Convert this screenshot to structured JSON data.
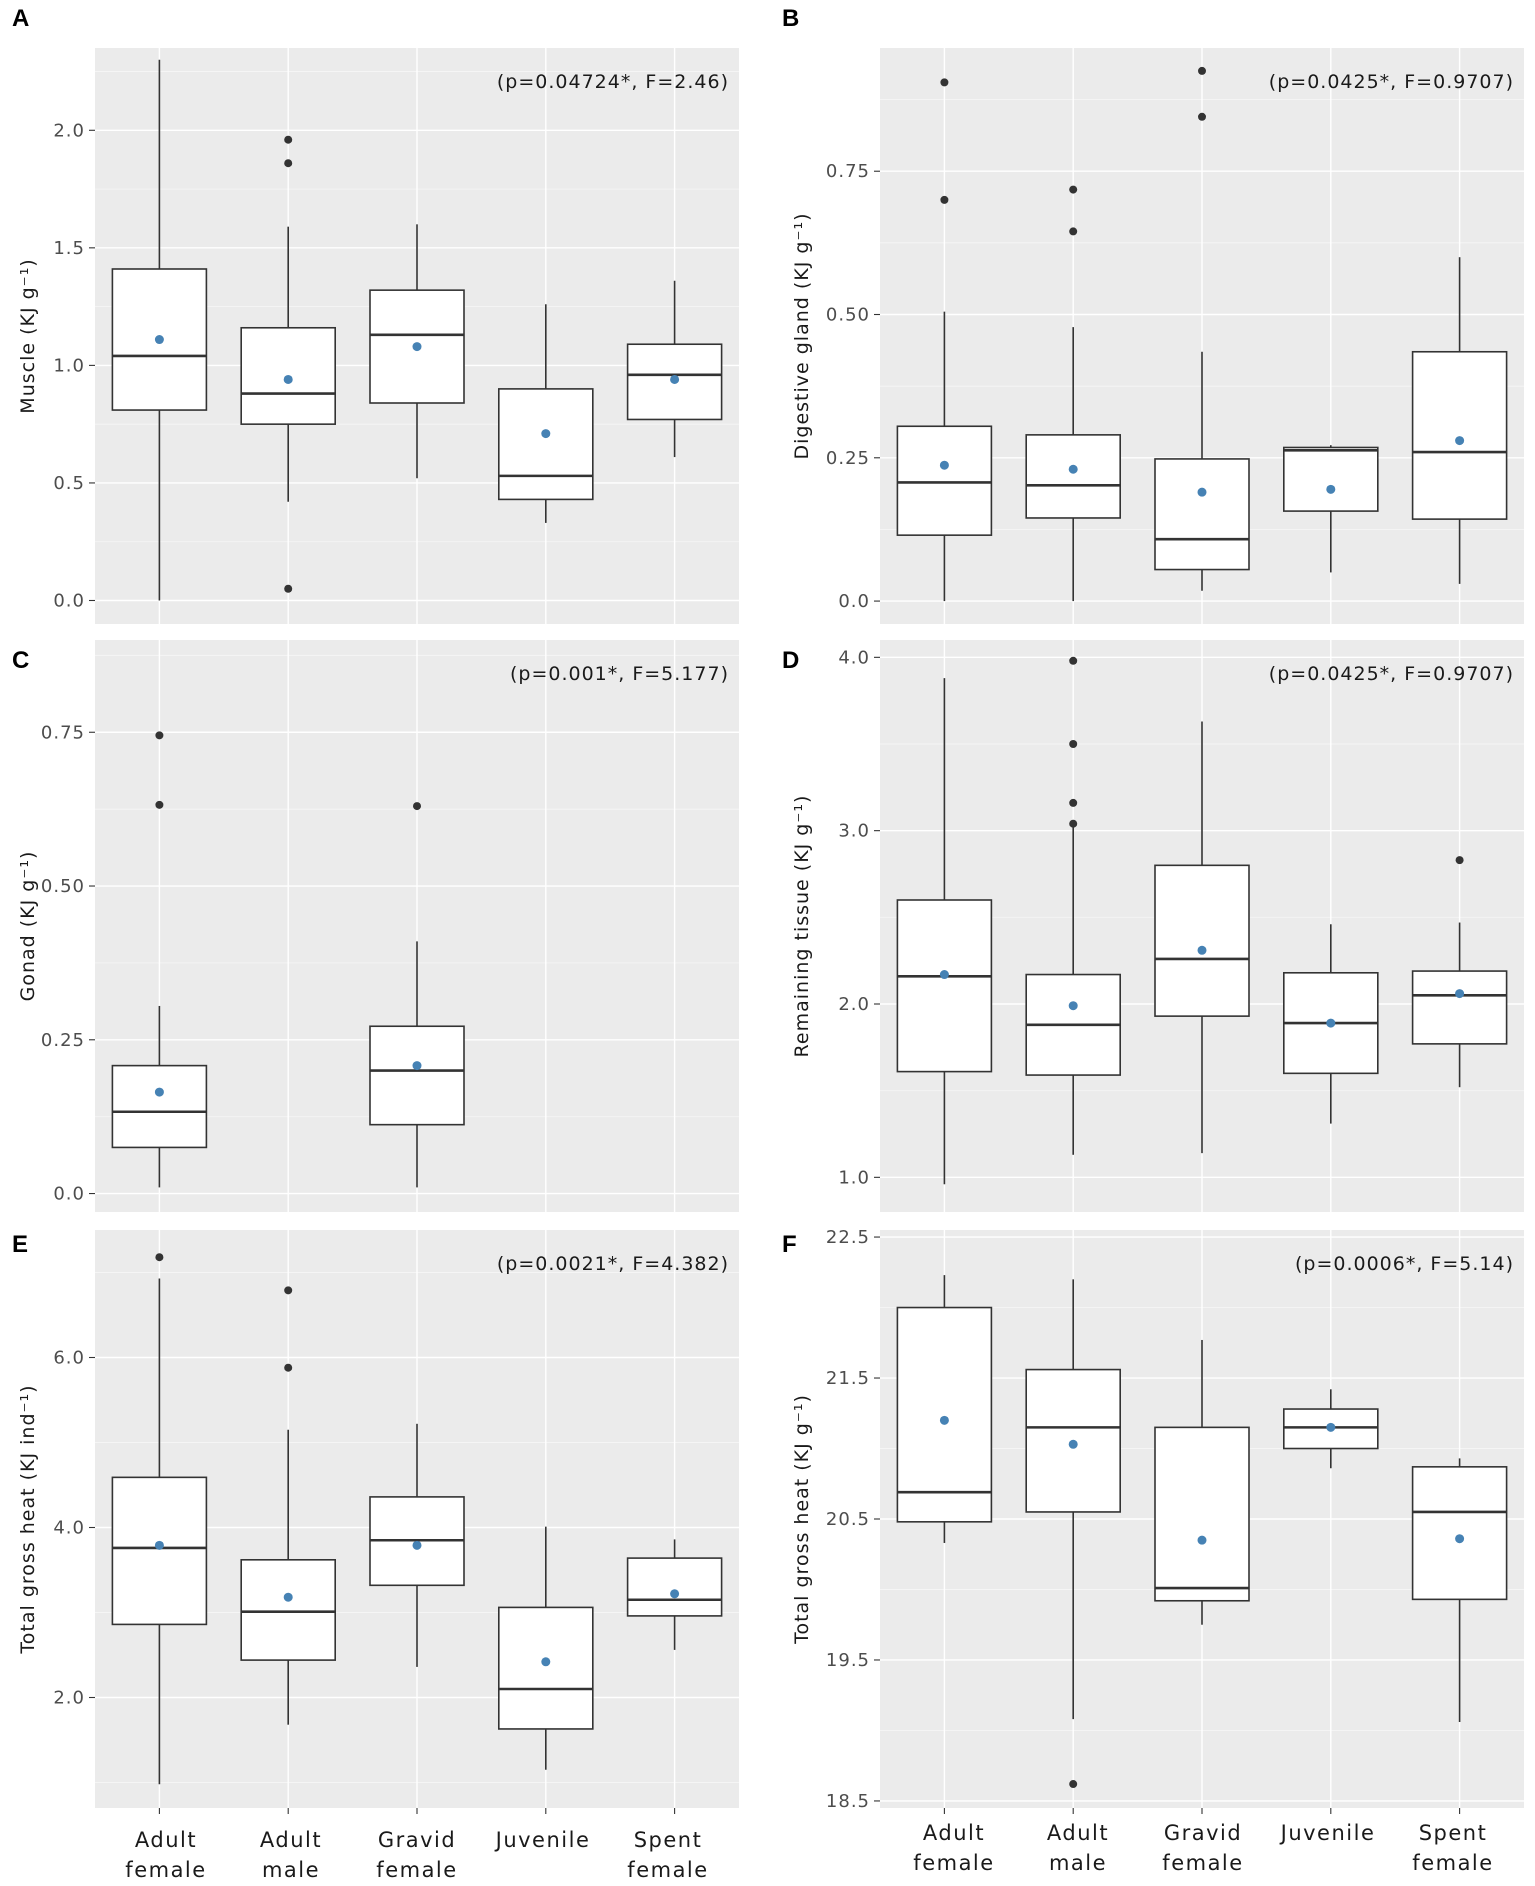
{
  "chart_data": [
    {
      "panel": "A",
      "type": "boxplot",
      "annotation": "(p=0.04724*, F=2.46)",
      "ylabel": "Muscle (KJ g⁻¹)",
      "categories": [
        "Adult female",
        "Adult male",
        "Gravid female",
        "Juvenile",
        "Spent female"
      ],
      "ylim": [
        -0.1,
        2.35
      ],
      "yticks": [
        0.0,
        0.5,
        1.0,
        1.5,
        2.0
      ],
      "ytick_labels": [
        "0.0",
        "0.5",
        "1.0",
        "1.5",
        "2.0"
      ],
      "boxes": [
        {
          "q1": 0.81,
          "median": 1.04,
          "q3": 1.41,
          "whisker_low": 0.0,
          "whisker_high": 2.3,
          "mean": 1.11,
          "outliers": []
        },
        {
          "q1": 0.75,
          "median": 0.88,
          "q3": 1.16,
          "whisker_low": 0.42,
          "whisker_high": 1.59,
          "mean": 0.94,
          "outliers": [
            1.96,
            1.86,
            0.05
          ]
        },
        {
          "q1": 0.84,
          "median": 1.13,
          "q3": 1.32,
          "whisker_low": 0.52,
          "whisker_high": 1.6,
          "mean": 1.08,
          "outliers": []
        },
        {
          "q1": 0.43,
          "median": 0.53,
          "q3": 0.9,
          "whisker_low": 0.33,
          "whisker_high": 1.26,
          "mean": 0.71,
          "outliers": []
        },
        {
          "q1": 0.77,
          "median": 0.96,
          "q3": 1.09,
          "whisker_low": 0.61,
          "whisker_high": 1.36,
          "mean": 0.94,
          "outliers": []
        }
      ]
    },
    {
      "panel": "B",
      "type": "boxplot",
      "annotation": "(p=0.0425*, F=0.9707)",
      "ylabel": "Digestive gland (KJ g⁻¹)",
      "categories": [
        "Adult female",
        "Adult male",
        "Gravid female",
        "Juvenile",
        "Spent female"
      ],
      "ylim": [
        -0.04,
        0.965
      ],
      "yticks": [
        0.0,
        0.25,
        0.5,
        0.75
      ],
      "ytick_labels": [
        "0.0",
        "0.25",
        "0.50",
        "0.75"
      ],
      "boxes": [
        {
          "q1": 0.115,
          "median": 0.207,
          "q3": 0.305,
          "whisker_low": 0.0,
          "whisker_high": 0.505,
          "mean": 0.237,
          "outliers": [
            0.905,
            0.7
          ]
        },
        {
          "q1": 0.145,
          "median": 0.202,
          "q3": 0.29,
          "whisker_low": 0.0,
          "whisker_high": 0.478,
          "mean": 0.23,
          "outliers": [
            0.718,
            0.645
          ]
        },
        {
          "q1": 0.055,
          "median": 0.108,
          "q3": 0.248,
          "whisker_low": 0.018,
          "whisker_high": 0.435,
          "mean": 0.19,
          "outliers": [
            0.925,
            0.845
          ]
        },
        {
          "q1": 0.157,
          "median": 0.263,
          "q3": 0.268,
          "whisker_low": 0.05,
          "whisker_high": 0.272,
          "mean": 0.195,
          "outliers": []
        },
        {
          "q1": 0.143,
          "median": 0.26,
          "q3": 0.435,
          "whisker_low": 0.03,
          "whisker_high": 0.6,
          "mean": 0.28,
          "outliers": []
        }
      ]
    },
    {
      "panel": "C",
      "type": "boxplot",
      "annotation": "(p=0.001*, F=5.177)",
      "ylabel": "Gonad (KJ g⁻¹)",
      "categories": [
        "Adult female",
        "Adult male",
        "Gravid female",
        "Juvenile",
        "Spent female"
      ],
      "ylim": [
        -0.03,
        0.9
      ],
      "yticks": [
        0.0,
        0.25,
        0.5,
        0.75
      ],
      "ytick_labels": [
        "0.0",
        "0.25",
        "0.50",
        "0.75"
      ],
      "boxes": [
        {
          "q1": 0.075,
          "median": 0.133,
          "q3": 0.208,
          "whisker_low": 0.01,
          "whisker_high": 0.305,
          "mean": 0.165,
          "outliers": [
            0.745,
            0.632
          ]
        },
        null,
        {
          "q1": 0.112,
          "median": 0.2,
          "q3": 0.272,
          "whisker_low": 0.01,
          "whisker_high": 0.41,
          "mean": 0.208,
          "outliers": [
            0.63
          ]
        },
        null,
        null
      ]
    },
    {
      "panel": "D",
      "type": "boxplot",
      "annotation": "(p=0.0425*, F=0.9707)",
      "ylabel": "Remaining tissue (KJ g⁻¹)",
      "categories": [
        "Adult female",
        "Adult male",
        "Gravid female",
        "Juvenile",
        "Spent female"
      ],
      "ylim": [
        0.8,
        4.1
      ],
      "yticks": [
        1.0,
        2.0,
        3.0,
        4.0
      ],
      "ytick_labels": [
        "1.0",
        "2.0",
        "3.0",
        "4.0"
      ],
      "boxes": [
        {
          "q1": 1.61,
          "median": 2.16,
          "q3": 2.6,
          "whisker_low": 0.96,
          "whisker_high": 3.88,
          "mean": 2.17,
          "outliers": []
        },
        {
          "q1": 1.59,
          "median": 1.88,
          "q3": 2.17,
          "whisker_low": 1.13,
          "whisker_high": 3.02,
          "mean": 1.99,
          "outliers": [
            3.98,
            3.5,
            3.16,
            3.04
          ]
        },
        {
          "q1": 1.93,
          "median": 2.26,
          "q3": 2.8,
          "whisker_low": 1.14,
          "whisker_high": 3.63,
          "mean": 2.31,
          "outliers": []
        },
        {
          "q1": 1.6,
          "median": 1.89,
          "q3": 2.18,
          "whisker_low": 1.31,
          "whisker_high": 2.46,
          "mean": 1.89,
          "outliers": []
        },
        {
          "q1": 1.77,
          "median": 2.05,
          "q3": 2.19,
          "whisker_low": 1.52,
          "whisker_high": 2.47,
          "mean": 2.06,
          "outliers": [
            2.83
          ]
        }
      ]
    },
    {
      "panel": "E",
      "type": "boxplot",
      "annotation": "(p=0.0021*, F=4.382)",
      "ylabel": "Total gross heat (KJ ind⁻¹)",
      "categories": [
        "Adult female",
        "Adult male",
        "Gravid female",
        "Juvenile",
        "Spent female"
      ],
      "ylim": [
        0.7,
        7.5
      ],
      "yticks": [
        2.0,
        4.0,
        6.0
      ],
      "ytick_labels": [
        "2.0",
        "4.0",
        "6.0"
      ],
      "boxes": [
        {
          "q1": 2.86,
          "median": 3.76,
          "q3": 4.59,
          "whisker_low": 0.98,
          "whisker_high": 6.93,
          "mean": 3.79,
          "outliers": [
            7.18
          ]
        },
        {
          "q1": 2.44,
          "median": 3.01,
          "q3": 3.62,
          "whisker_low": 1.68,
          "whisker_high": 5.15,
          "mean": 3.18,
          "outliers": [
            6.79,
            5.88
          ]
        },
        {
          "q1": 3.32,
          "median": 3.85,
          "q3": 4.36,
          "whisker_low": 2.36,
          "whisker_high": 5.22,
          "mean": 3.79,
          "outliers": []
        },
        {
          "q1": 1.63,
          "median": 2.1,
          "q3": 3.06,
          "whisker_low": 1.15,
          "whisker_high": 4.01,
          "mean": 2.42,
          "outliers": []
        },
        {
          "q1": 2.96,
          "median": 3.15,
          "q3": 3.64,
          "whisker_low": 2.56,
          "whisker_high": 3.86,
          "mean": 3.22,
          "outliers": []
        }
      ]
    },
    {
      "panel": "F",
      "type": "boxplot",
      "annotation": "(p=0.0006*, F=5.14)",
      "ylabel": "Total gross heat (KJ g⁻¹)",
      "categories": [
        "Adult female",
        "Adult male",
        "Gravid female",
        "Juvenile",
        "Spent female"
      ],
      "ylim": [
        18.45,
        22.55
      ],
      "yticks": [
        18.5,
        19.5,
        20.5,
        21.5,
        22.5
      ],
      "ytick_labels": [
        "18.5",
        "19.5",
        "20.5",
        "21.5",
        "22.5"
      ],
      "boxes": [
        {
          "q1": 20.48,
          "median": 20.69,
          "q3": 22.0,
          "whisker_low": 20.33,
          "whisker_high": 22.23,
          "mean": 21.2,
          "outliers": []
        },
        {
          "q1": 20.55,
          "median": 21.15,
          "q3": 21.56,
          "whisker_low": 19.08,
          "whisker_high": 22.2,
          "mean": 21.03,
          "outliers": [
            18.62
          ]
        },
        {
          "q1": 19.92,
          "median": 20.01,
          "q3": 21.15,
          "whisker_low": 19.75,
          "whisker_high": 21.77,
          "mean": 20.35,
          "outliers": []
        },
        {
          "q1": 21.0,
          "median": 21.15,
          "q3": 21.28,
          "whisker_low": 20.86,
          "whisker_high": 21.42,
          "mean": 21.15,
          "outliers": []
        },
        {
          "q1": 19.93,
          "median": 20.55,
          "q3": 20.87,
          "whisker_low": 19.06,
          "whisker_high": 20.93,
          "mean": 20.36,
          "outliers": []
        }
      ]
    }
  ],
  "x_axis": {
    "left": [
      {
        "line1": "Adult",
        "line2": "female"
      },
      {
        "line1": "Adult",
        "line2": "male"
      },
      {
        "line1": "Gravid",
        "line2": "female"
      },
      {
        "line1": "Juvenile",
        "line2": ""
      },
      {
        "line1": "Spent",
        "line2": "female"
      }
    ],
    "right": [
      {
        "line1": "Adult",
        "line2": "female"
      },
      {
        "line1": "Adult",
        "line2": "male"
      },
      {
        "line1": "Gravid",
        "line2": "female"
      },
      {
        "line1": "Juvenile",
        "line2": ""
      },
      {
        "line1": "Spent",
        "line2": "female"
      }
    ]
  },
  "colors": {
    "panel_background": "#ebebeb",
    "mean_point": "#4682b4",
    "box_line": "#333333"
  }
}
